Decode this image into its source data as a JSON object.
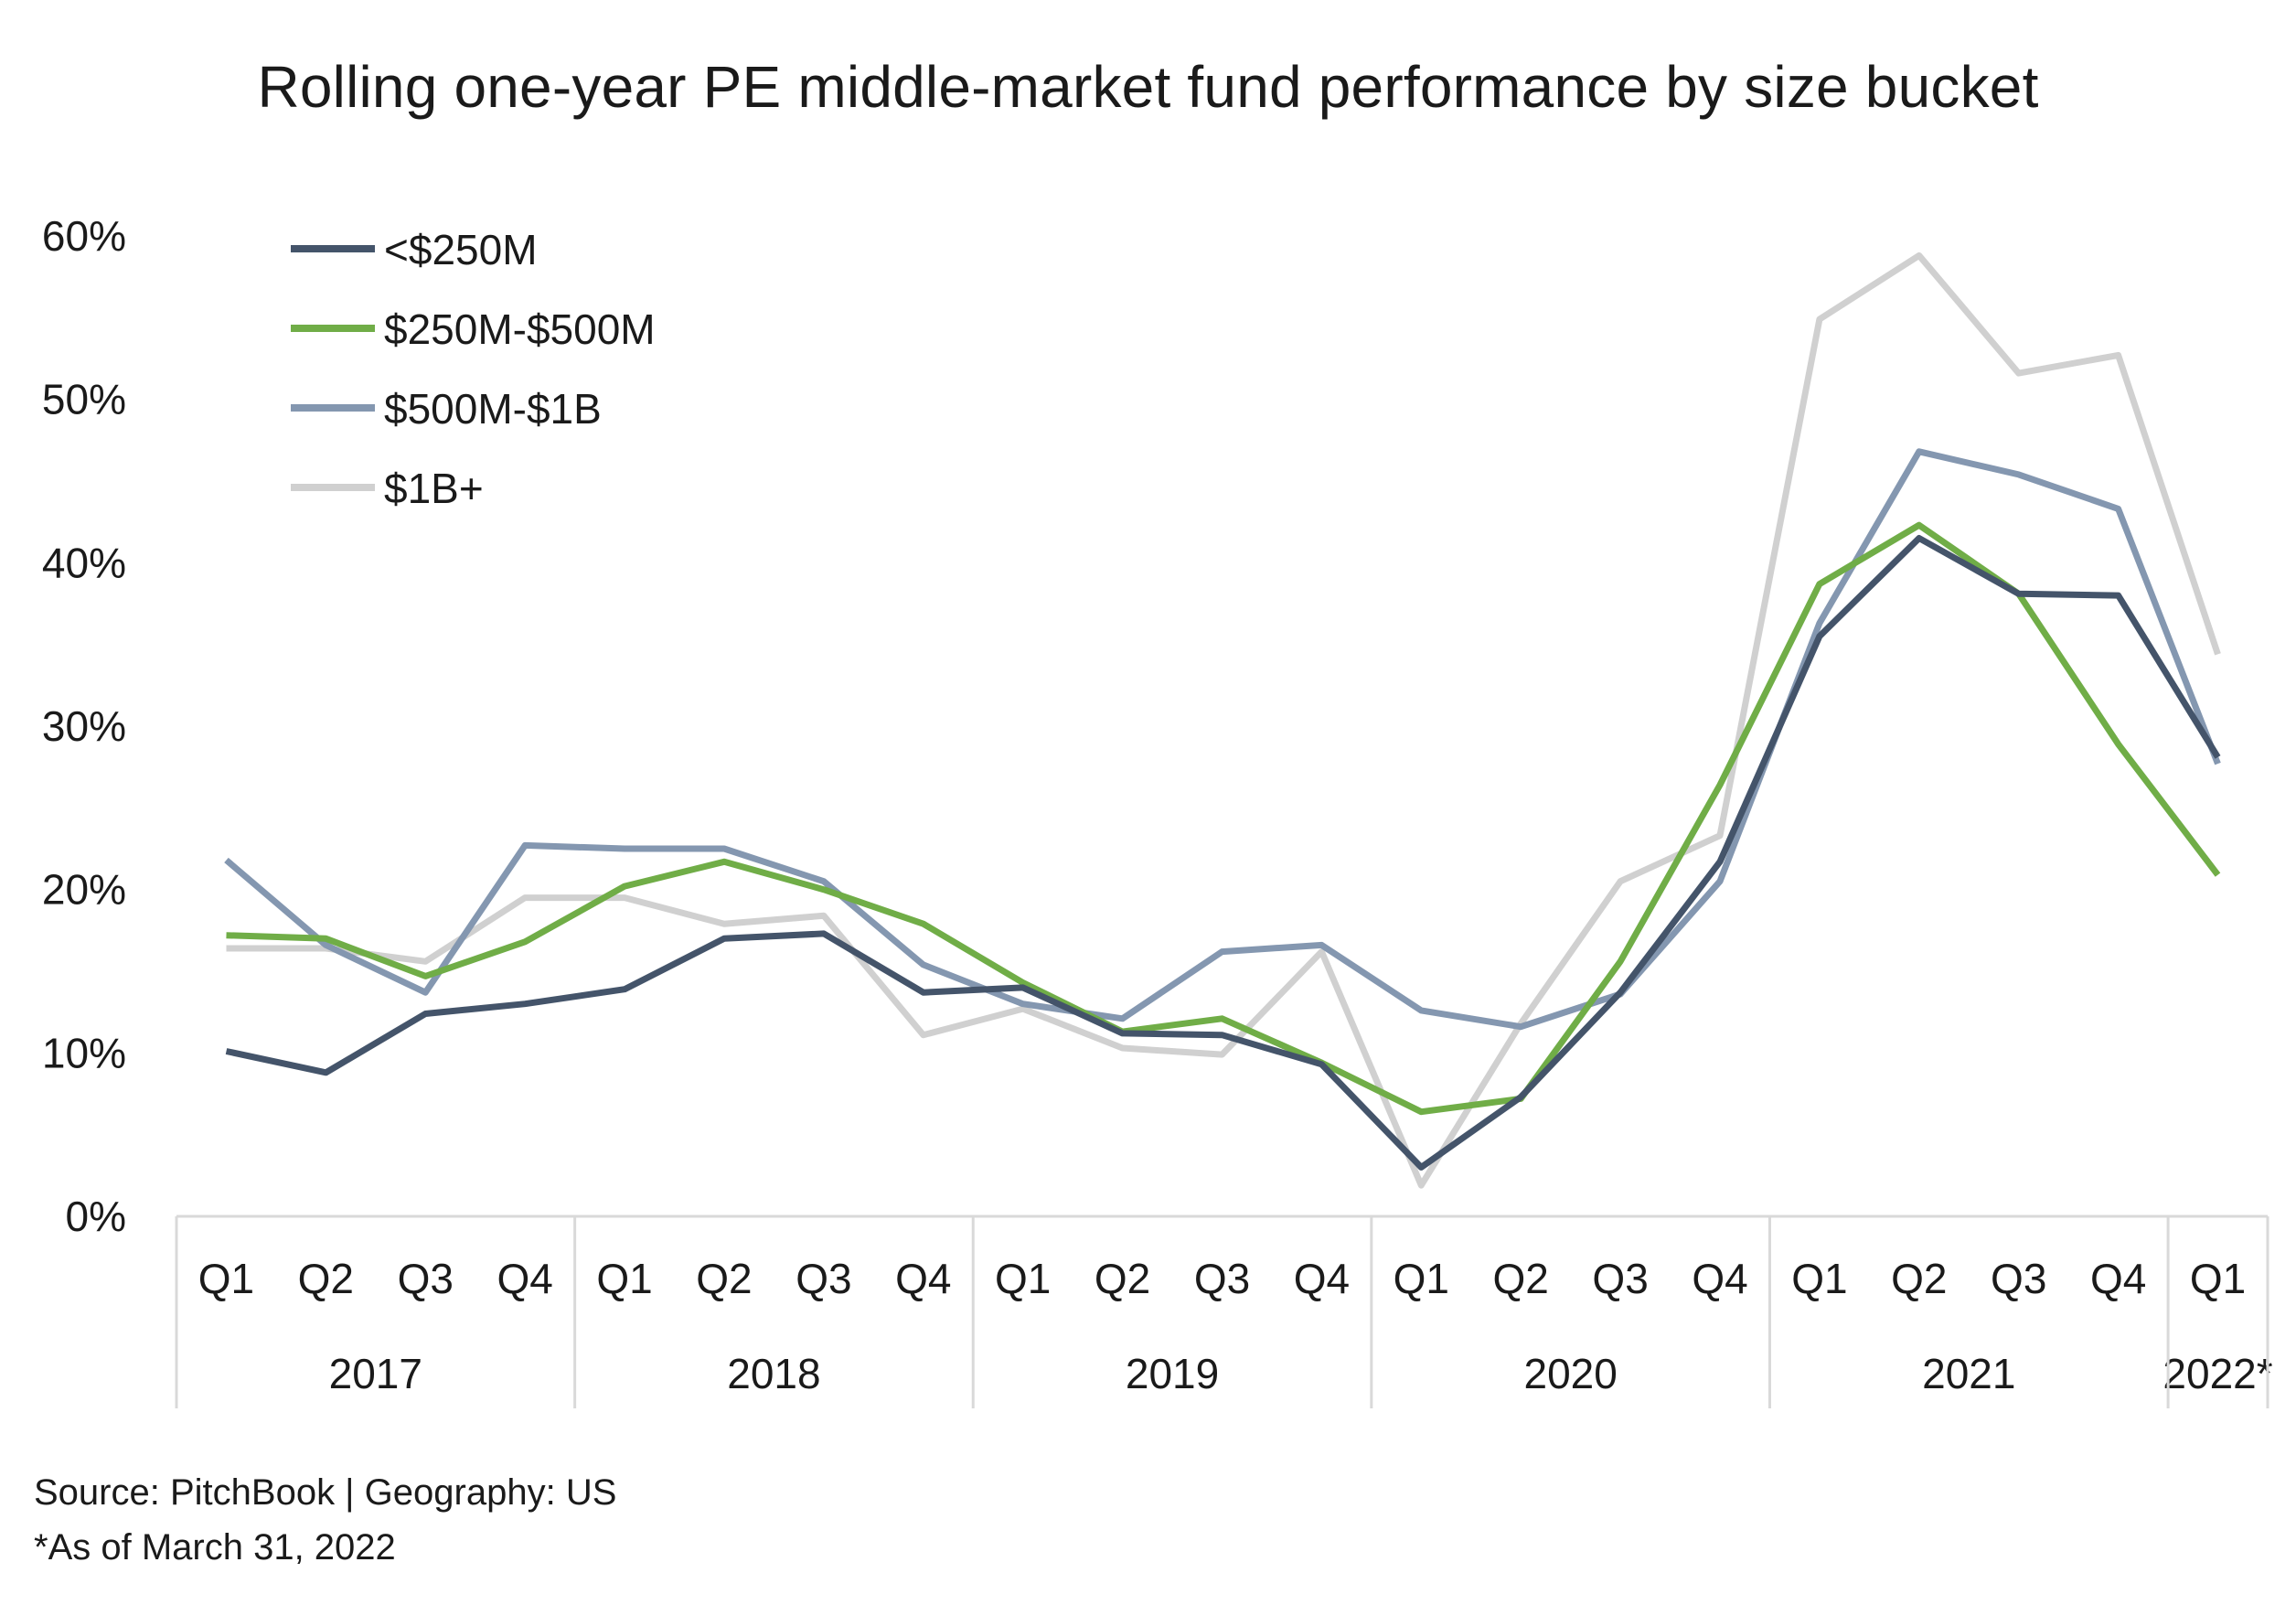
{
  "chart_data": {
    "type": "line",
    "title": "Rolling one-year PE middle-market fund performance by size bucket",
    "xlabel": "",
    "ylabel": "",
    "ylim": [
      0,
      60
    ],
    "y_ticks": [
      "0%",
      "10%",
      "20%",
      "30%",
      "40%",
      "50%",
      "60%"
    ],
    "grid": false,
    "legend_position": "top-left",
    "categories": [
      "Q1",
      "Q2",
      "Q3",
      "Q4",
      "Q1",
      "Q2",
      "Q3",
      "Q4",
      "Q1",
      "Q2",
      "Q3",
      "Q4",
      "Q1",
      "Q2",
      "Q3",
      "Q4",
      "Q1",
      "Q2",
      "Q3",
      "Q4",
      "Q1"
    ],
    "years": [
      {
        "label": "2017",
        "quarters": 4
      },
      {
        "label": "2018",
        "quarters": 4
      },
      {
        "label": "2019",
        "quarters": 4
      },
      {
        "label": "2020",
        "quarters": 4
      },
      {
        "label": "2021",
        "quarters": 4
      },
      {
        "label": "2022*",
        "quarters": 1
      }
    ],
    "series": [
      {
        "name": "<$250M",
        "color": "#44546a",
        "values": [
          10.1,
          8.8,
          12.4,
          13.0,
          13.9,
          17.0,
          17.3,
          13.7,
          14.0,
          11.2,
          11.1,
          9.3,
          3.0,
          7.3,
          13.7,
          21.7,
          35.5,
          41.5,
          38.1,
          38.0,
          28.1
        ]
      },
      {
        "name": "$250M-$500M",
        "color": "#70ad47",
        "values": [
          17.2,
          17.0,
          14.7,
          16.8,
          20.2,
          21.7,
          20.0,
          17.9,
          14.3,
          11.3,
          12.1,
          9.4,
          6.4,
          7.2,
          15.6,
          26.4,
          38.7,
          42.3,
          38.1,
          28.9,
          20.9
        ]
      },
      {
        "name": "$500M-$1B",
        "color": "#8497b0",
        "values": [
          21.8,
          16.6,
          13.7,
          22.7,
          22.5,
          22.5,
          20.5,
          15.4,
          13.0,
          12.1,
          16.2,
          16.6,
          12.6,
          11.6,
          13.6,
          20.5,
          36.3,
          46.8,
          45.4,
          43.3,
          27.7
        ]
      },
      {
        "name": "$1B+",
        "color": "#d0d0d0",
        "values": [
          16.4,
          16.4,
          15.6,
          19.5,
          19.5,
          17.9,
          18.4,
          11.1,
          12.7,
          10.3,
          9.9,
          16.2,
          1.9,
          11.8,
          20.5,
          23.3,
          54.9,
          58.8,
          51.6,
          52.7,
          34.4
        ]
      }
    ]
  },
  "footnotes": {
    "source": "Source: PitchBook | Geography: US",
    "as_of": "*As of March 31, 2022"
  }
}
